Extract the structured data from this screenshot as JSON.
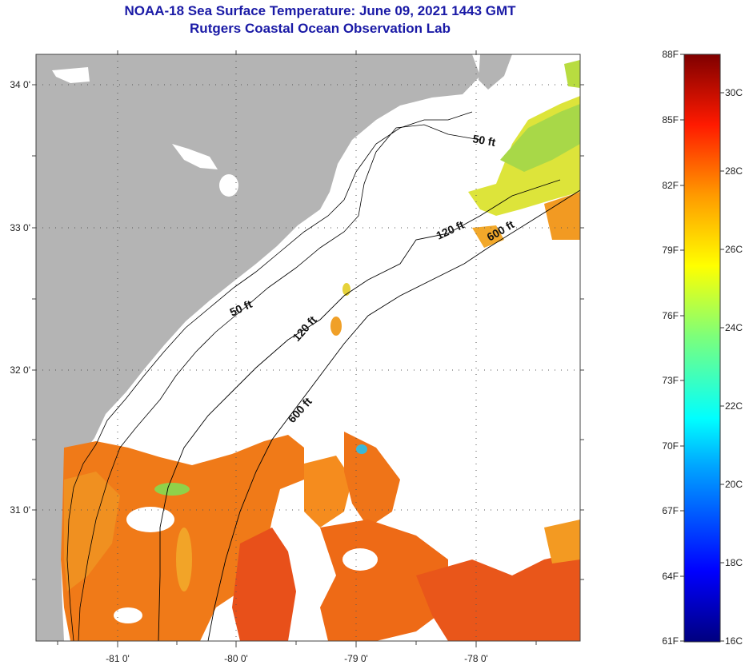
{
  "title": "NOAA-18 Sea Surface Temperature:  June 09, 2021 1443 GMT",
  "subtitle": "Rutgers Coastal Ocean Observation Lab",
  "map": {
    "lat_labels": [
      "34 0'",
      "33 0'",
      "32 0'",
      "31 0'"
    ],
    "lon_labels": [
      "-81 0'",
      "-80 0'",
      "-79 0'",
      "-78 0'"
    ],
    "isobath_labels": [
      "50 ft",
      "50 ft",
      "120 ft",
      "120 ft",
      "600 ft",
      "600 ft"
    ],
    "colors": {
      "land": "#b4b4b4",
      "ocean_nodata": "#ffffff",
      "warm": "#f08a1c",
      "yellow": "#e6e632"
    }
  },
  "colorbar": {
    "fahrenheit_labels": [
      "88F",
      "85F",
      "82F",
      "79F",
      "76F",
      "73F",
      "70F",
      "67F",
      "64F",
      "61F"
    ],
    "celsius_labels": [
      "30C",
      "28C",
      "26C",
      "24C",
      "22C",
      "20C",
      "18C",
      "16C"
    ]
  }
}
